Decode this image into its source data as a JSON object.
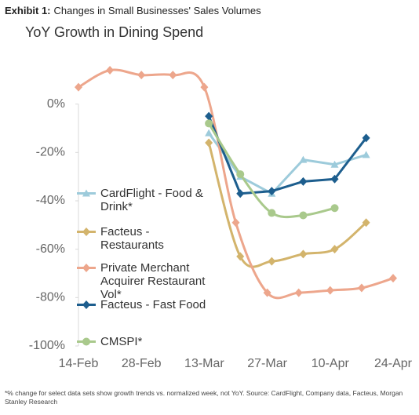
{
  "header": {
    "label": "Exhibit 1:",
    "text": "Changes in Small Businesses' Sales Volumes"
  },
  "footnote": "*% change for select data sets show growth trends vs. normalized week, not YoY. Source: CardFlight, Company data, Facteus, Morgan Stanley Research",
  "chart_data": {
    "type": "line",
    "title": "YoY Growth in Dining Spend",
    "xlim": [
      "14-Feb",
      "24-Apr"
    ],
    "xticks": [
      "14-Feb",
      "28-Feb",
      "13-Mar",
      "27-Mar",
      "10-Apr",
      "24-Apr"
    ],
    "ylim": [
      -100,
      20
    ],
    "yticks": [
      {
        "value": 0,
        "label": "0%"
      },
      {
        "value": -20,
        "label": "-20%"
      },
      {
        "value": -40,
        "label": "-40%"
      },
      {
        "value": -60,
        "label": "-60%"
      },
      {
        "value": -80,
        "label": "-80%"
      },
      {
        "value": -100,
        "label": "-100%"
      }
    ],
    "grid": false,
    "series": [
      {
        "name": "CardFlight - Food & Drink*",
        "color": "#9dcbdb",
        "marker": "triangle",
        "smooth": false,
        "x": [
          "14-Mar",
          "21-Mar",
          "28-Mar",
          "4-Apr",
          "11-Apr",
          "18-Apr"
        ],
        "values": [
          -12,
          -30,
          -37,
          -23,
          -25,
          -21
        ]
      },
      {
        "name": "Facteus - Restaurants",
        "color": "#d3b46c",
        "marker": "diamond",
        "smooth": true,
        "x": [
          "14-Mar",
          "21-Mar",
          "28-Mar",
          "4-Apr",
          "11-Apr",
          "18-Apr"
        ],
        "values": [
          -16,
          -63,
          -65,
          -62,
          -60,
          -49
        ]
      },
      {
        "name": "Private Merchant Acquirer Restaurant Vol*",
        "color": "#eda68c",
        "marker": "diamond",
        "smooth": true,
        "x": [
          "14-Feb",
          "21-Feb",
          "28-Feb",
          "6-Mar",
          "13-Mar",
          "20-Mar",
          "27-Mar",
          "3-Apr",
          "10-Apr",
          "17-Apr",
          "24-Apr"
        ],
        "values": [
          7,
          14,
          12,
          12,
          7,
          -49,
          -78,
          -78,
          -77,
          -76,
          -72
        ]
      },
      {
        "name": "Facteus -  Fast Food",
        "color": "#1d5e8e",
        "marker": "diamond",
        "smooth": false,
        "x": [
          "14-Mar",
          "21-Mar",
          "28-Mar",
          "4-Apr",
          "11-Apr",
          "18-Apr"
        ],
        "values": [
          -5,
          -37,
          -36,
          -32,
          -31,
          -14
        ]
      },
      {
        "name": "CMSPI*",
        "color": "#a9c98c",
        "marker": "circle",
        "smooth": true,
        "x": [
          "14-Mar",
          "21-Mar",
          "28-Mar",
          "4-Apr",
          "11-Apr"
        ],
        "values": [
          -8,
          -29,
          -45,
          -46,
          -43
        ]
      }
    ]
  }
}
